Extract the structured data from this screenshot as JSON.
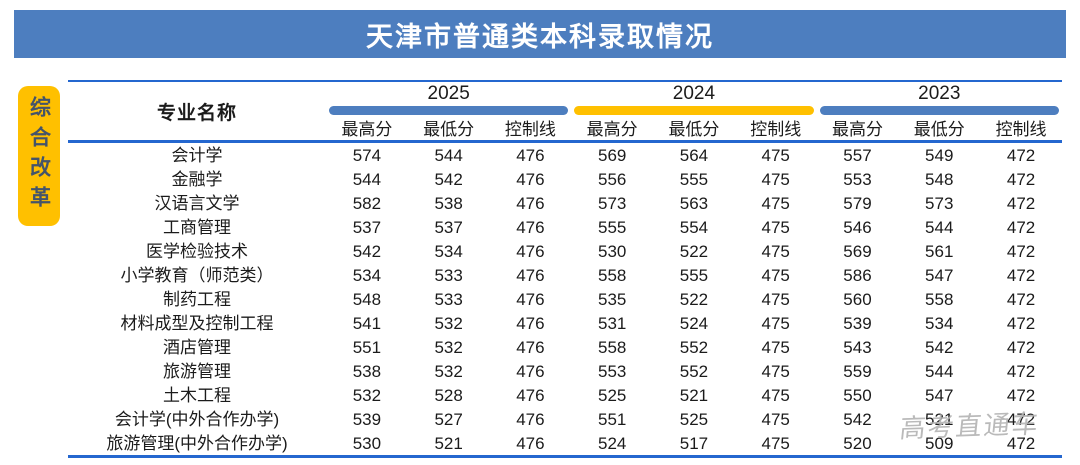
{
  "title": "天津市普通类本科录取情况",
  "side_label": "综合改革",
  "watermark": "高考直通车",
  "colors": {
    "title_bar_bg": "#4d7ebf",
    "accent_yellow": "#ffc000",
    "line_blue": "#2467cf",
    "bar_blue": "#4d7ebf",
    "side_text": "#44546a",
    "watermark_gray": "#b3b3b3"
  },
  "chart_data": {
    "type": "table",
    "title": "天津市普通类本科录取情况",
    "row_header": "专业名称",
    "year_groups": [
      {
        "year": "2025",
        "bar_color": "#4d7ebf"
      },
      {
        "year": "2024",
        "bar_color": "#ffc000"
      },
      {
        "year": "2023",
        "bar_color": "#4d7ebf"
      }
    ],
    "sub_headers": [
      "最高分",
      "最低分",
      "控制线"
    ],
    "rows": [
      {
        "name": "会计学",
        "scores": [
          574,
          544,
          476,
          569,
          564,
          475,
          557,
          549,
          472
        ]
      },
      {
        "name": "金融学",
        "scores": [
          544,
          542,
          476,
          556,
          555,
          475,
          553,
          548,
          472
        ]
      },
      {
        "name": "汉语言文学",
        "scores": [
          582,
          538,
          476,
          573,
          563,
          475,
          579,
          573,
          472
        ]
      },
      {
        "name": "工商管理",
        "scores": [
          537,
          537,
          476,
          555,
          554,
          475,
          546,
          544,
          472
        ]
      },
      {
        "name": "医学检验技术",
        "scores": [
          542,
          534,
          476,
          530,
          522,
          475,
          569,
          561,
          472
        ]
      },
      {
        "name": "小学教育（师范类）",
        "scores": [
          534,
          533,
          476,
          558,
          555,
          475,
          586,
          547,
          472
        ]
      },
      {
        "name": "制药工程",
        "scores": [
          548,
          533,
          476,
          535,
          522,
          475,
          560,
          558,
          472
        ]
      },
      {
        "name": "材料成型及控制工程",
        "scores": [
          541,
          532,
          476,
          531,
          524,
          475,
          539,
          534,
          472
        ]
      },
      {
        "name": "酒店管理",
        "scores": [
          551,
          532,
          476,
          558,
          552,
          475,
          543,
          542,
          472
        ]
      },
      {
        "name": "旅游管理",
        "scores": [
          538,
          532,
          476,
          553,
          552,
          475,
          559,
          544,
          472
        ]
      },
      {
        "name": "土木工程",
        "scores": [
          532,
          528,
          476,
          525,
          521,
          475,
          550,
          547,
          472
        ]
      },
      {
        "name": "会计学(中外合作办学)",
        "scores": [
          539,
          527,
          476,
          551,
          525,
          475,
          542,
          521,
          472
        ]
      },
      {
        "name": "旅游管理(中外合作办学)",
        "scores": [
          530,
          521,
          476,
          524,
          517,
          475,
          520,
          509,
          472
        ]
      }
    ]
  }
}
